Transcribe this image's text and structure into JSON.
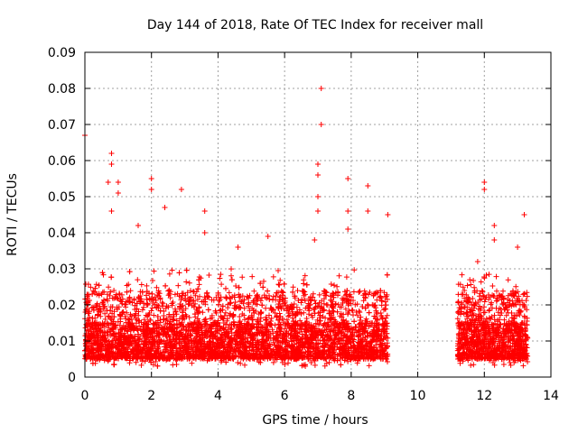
{
  "chart_data": {
    "type": "scatter",
    "title": "Day 144 of 2018, Rate Of TEC Index for receiver mall",
    "xlabel": "GPS time / hours",
    "ylabel": "ROTI / TECUs",
    "xlim": [
      0,
      14
    ],
    "ylim": [
      0,
      0.09
    ],
    "xticks": [
      "0",
      "2",
      "4",
      "6",
      "8",
      "10",
      "12",
      "14"
    ],
    "yticks": [
      "0",
      "0.01",
      "0.02",
      "0.03",
      "0.04",
      "0.05",
      "0.06",
      "0.07",
      "0.08",
      "0.09"
    ],
    "grid": true,
    "marker": "plus",
    "series_color": "#ff0000",
    "observation_windows_hours": [
      [
        0.0,
        9.1
      ],
      [
        11.2,
        13.3
      ]
    ],
    "typical_range": [
      0.005,
      0.03
    ],
    "notable_points": [
      {
        "x": 0.0,
        "y": 0.067
      },
      {
        "x": 0.8,
        "y": 0.062
      },
      {
        "x": 0.8,
        "y": 0.059
      },
      {
        "x": 0.7,
        "y": 0.054
      },
      {
        "x": 1.0,
        "y": 0.054
      },
      {
        "x": 1.0,
        "y": 0.051
      },
      {
        "x": 0.8,
        "y": 0.046
      },
      {
        "x": 1.6,
        "y": 0.042
      },
      {
        "x": 2.0,
        "y": 0.055
      },
      {
        "x": 2.0,
        "y": 0.052
      },
      {
        "x": 2.4,
        "y": 0.047
      },
      {
        "x": 2.9,
        "y": 0.052
      },
      {
        "x": 3.6,
        "y": 0.046
      },
      {
        "x": 3.6,
        "y": 0.04
      },
      {
        "x": 4.6,
        "y": 0.036
      },
      {
        "x": 5.5,
        "y": 0.039
      },
      {
        "x": 7.0,
        "y": 0.059
      },
      {
        "x": 7.0,
        "y": 0.056
      },
      {
        "x": 7.1,
        "y": 0.08
      },
      {
        "x": 7.1,
        "y": 0.07
      },
      {
        "x": 7.0,
        "y": 0.05
      },
      {
        "x": 7.0,
        "y": 0.046
      },
      {
        "x": 6.9,
        "y": 0.038
      },
      {
        "x": 7.9,
        "y": 0.055
      },
      {
        "x": 7.9,
        "y": 0.046
      },
      {
        "x": 7.9,
        "y": 0.041
      },
      {
        "x": 8.5,
        "y": 0.053
      },
      {
        "x": 8.5,
        "y": 0.046
      },
      {
        "x": 9.1,
        "y": 0.045
      },
      {
        "x": 11.8,
        "y": 0.032
      },
      {
        "x": 12.0,
        "y": 0.054
      },
      {
        "x": 12.0,
        "y": 0.052
      },
      {
        "x": 12.3,
        "y": 0.042
      },
      {
        "x": 12.3,
        "y": 0.038
      },
      {
        "x": 13.2,
        "y": 0.045
      },
      {
        "x": 13.0,
        "y": 0.036
      }
    ]
  }
}
